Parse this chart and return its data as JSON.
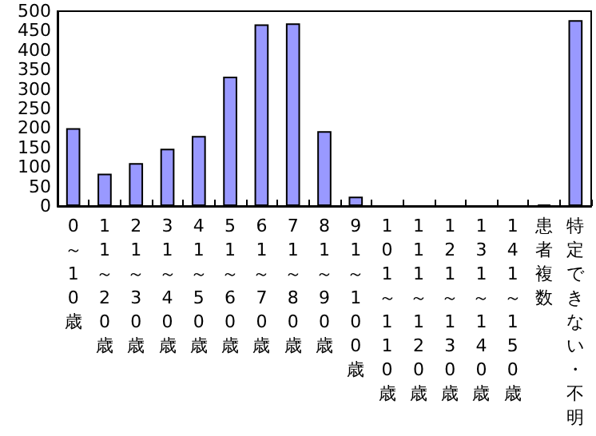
{
  "chart_data": {
    "type": "bar",
    "categories": [
      "0～10歳",
      "11～20歳",
      "21～30歳",
      "31～40歳",
      "41～50歳",
      "51～60歳",
      "61～70歳",
      "71～80歳",
      "81～90歳",
      "91～100歳",
      "101～110歳",
      "111～120歳",
      "121～130歳",
      "131～140歳",
      "141～150歳",
      "患者複数",
      "特定できない・不明"
    ],
    "values": [
      200,
      83,
      110,
      147,
      180,
      332,
      466,
      469,
      192,
      24,
      0,
      0,
      0,
      0,
      0,
      4,
      477
    ],
    "color": "#9999ff",
    "ylim": [
      0,
      500
    ],
    "yticks": [
      0,
      50,
      100,
      150,
      200,
      250,
      300,
      350,
      400,
      450,
      500
    ],
    "grid": false
  }
}
